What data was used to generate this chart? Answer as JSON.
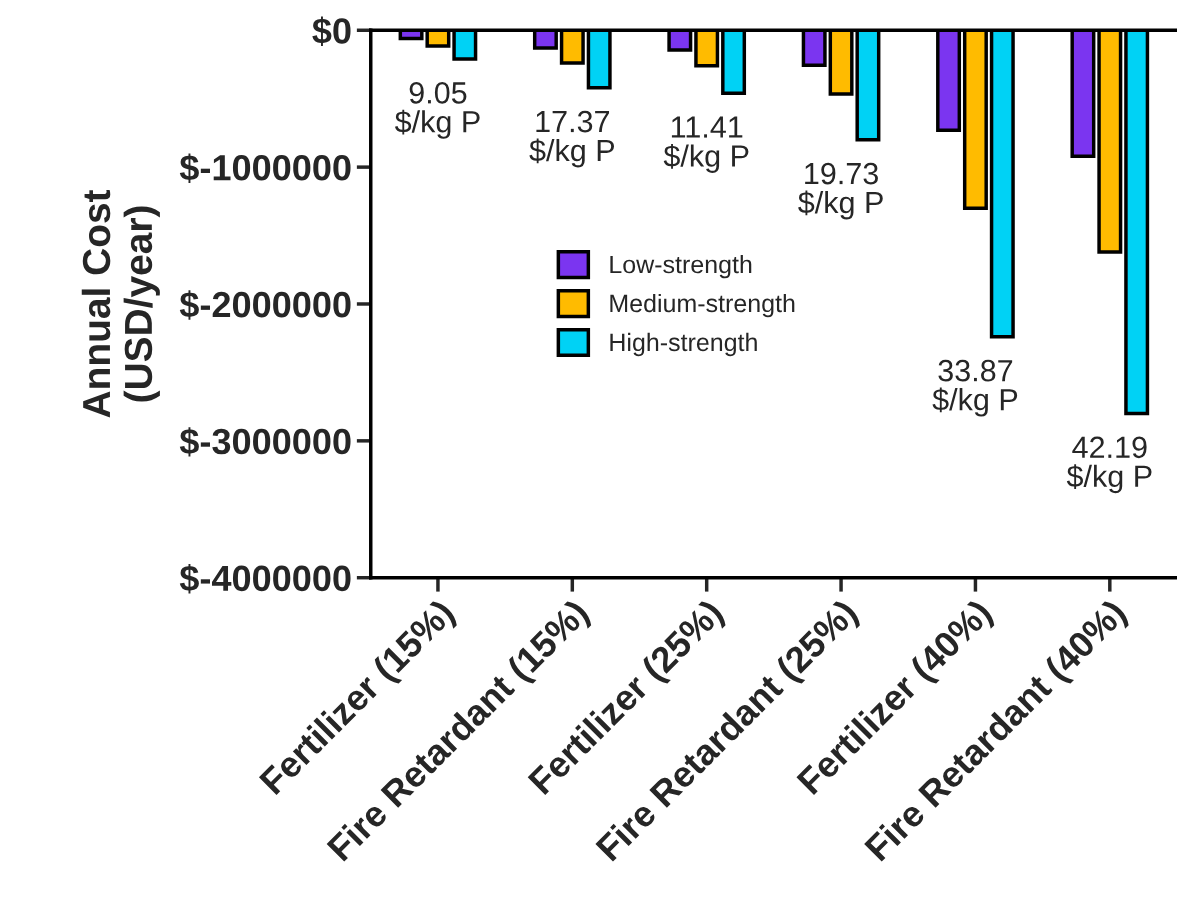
{
  "chart_data": {
    "type": "bar",
    "ylabel": "Annual Cost\n(USD/year)",
    "categories": [
      "Fertilizer (15%)",
      "Fire Retardant (15%)",
      "Fertilizer (25%)",
      "Fire Retardant (25%)",
      "Fertilizer (40%)",
      "Fire Retardant (40%)"
    ],
    "series": [
      {
        "name": "Low-strength",
        "color": "#7b35f0",
        "values": [
          -60000,
          -130000,
          -145000,
          -255000,
          -730000,
          -920000
        ]
      },
      {
        "name": "Medium-strength",
        "color": "#ffbb00",
        "values": [
          -115000,
          -240000,
          -260000,
          -465000,
          -1300000,
          -1620000
        ]
      },
      {
        "name": "High-strength",
        "color": "#00d2f5",
        "values": [
          -210000,
          -420000,
          -460000,
          -800000,
          -2240000,
          -2800000
        ]
      }
    ],
    "ylim": [
      -4000000,
      0
    ],
    "yticks": [
      {
        "value": 0,
        "label": "$0"
      },
      {
        "value": -1000000,
        "label": "$-1000000"
      },
      {
        "value": -2000000,
        "label": "$-2000000"
      },
      {
        "value": -3000000,
        "label": "$-3000000"
      },
      {
        "value": -4000000,
        "label": "$-4000000"
      }
    ],
    "annotations": [
      "9.05\n$/kg P",
      "17.37\n$/kg P",
      "11.41\n$/kg P",
      "19.73\n$/kg P",
      "33.87\n$/kg P",
      "42.19\n$/kg P"
    ],
    "legend": "center",
    "grid": false
  }
}
